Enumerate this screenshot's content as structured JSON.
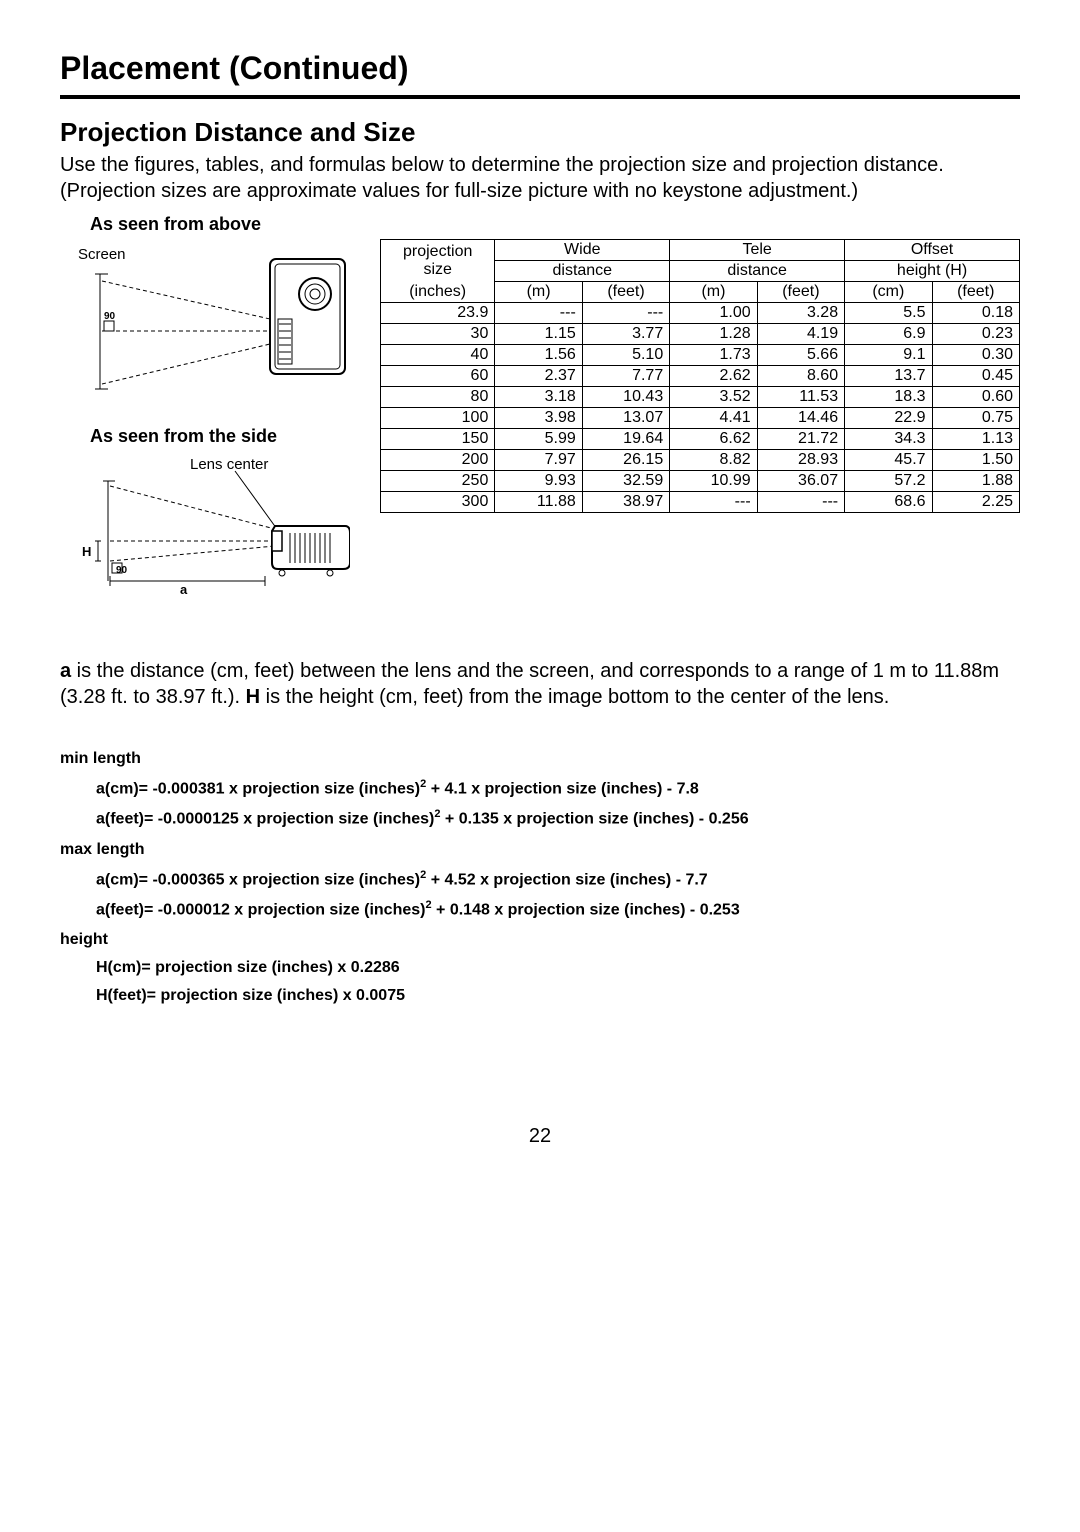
{
  "title": "Placement (Continued)",
  "subtitle": "Projection Distance and Size",
  "intro": "Use the figures, tables, and formulas below to determine the projection size and projection distance. (Projection sizes are approximate values for full-size picture with no keystone adjustment.)",
  "label_above": "As seen from above",
  "label_side": "As seen from the side",
  "diagram": {
    "screen_label": "Screen",
    "angle_label": "90",
    "lens_center_label": "Lens center",
    "H_label": "H",
    "a_label": "a"
  },
  "table": {
    "hdr_proj1": "projection",
    "hdr_proj2": "size",
    "hdr_proj3": "(inches)",
    "hdr_wide": "Wide",
    "hdr_tele": "Tele",
    "hdr_offset": "Offset",
    "hdr_distance": "distance",
    "hdr_height": "height (H)",
    "unit_m": "(m)",
    "unit_feet": "(feet)",
    "unit_cm": "(cm)",
    "rows": [
      [
        "23.9",
        "---",
        "---",
        "1.00",
        "3.28",
        "5.5",
        "0.18"
      ],
      [
        "30",
        "1.15",
        "3.77",
        "1.28",
        "4.19",
        "6.9",
        "0.23"
      ],
      [
        "40",
        "1.56",
        "5.10",
        "1.73",
        "5.66",
        "9.1",
        "0.30"
      ],
      [
        "60",
        "2.37",
        "7.77",
        "2.62",
        "8.60",
        "13.7",
        "0.45"
      ],
      [
        "80",
        "3.18",
        "10.43",
        "3.52",
        "11.53",
        "18.3",
        "0.60"
      ],
      [
        "100",
        "3.98",
        "13.07",
        "4.41",
        "14.46",
        "22.9",
        "0.75"
      ],
      [
        "150",
        "5.99",
        "19.64",
        "6.62",
        "21.72",
        "34.3",
        "1.13"
      ],
      [
        "200",
        "7.97",
        "26.15",
        "8.82",
        "28.93",
        "45.7",
        "1.50"
      ],
      [
        "250",
        "9.93",
        "32.59",
        "10.99",
        "36.07",
        "57.2",
        "1.88"
      ],
      [
        "300",
        "11.88",
        "38.97",
        "---",
        "---",
        "68.6",
        "2.25"
      ]
    ],
    "col_widths_pct": [
      17,
      13,
      13,
      13,
      13,
      13,
      13
    ]
  },
  "para_parts": {
    "a_bold": "a",
    "a_text": " is the distance (cm, feet) between the lens and the screen, and corresponds to a range of 1 m to 11.88m (3.28 ft. to 38.97 ft.). ",
    "h_bold": "H",
    "h_text": " is the height (cm, feet) from the image bottom to the center of the lens."
  },
  "formulas": {
    "min_label": "min length",
    "min1_a": "a(cm)= -0.000381 x projection size (inches)",
    "min1_b": " + 4.1 x projection size (inches) - 7.8",
    "min2_a": "a(feet)= -0.0000125 x projection size (inches)",
    "min2_b": " + 0.135 x projection size (inches) - 0.256",
    "max_label": "max length",
    "max1_a": "a(cm)= -0.000365 x projection size (inches)",
    "max1_b": " + 4.52 x projection size (inches) - 7.7",
    "max2_a": "a(feet)= -0.000012 x projection size (inches)",
    "max2_b": " + 0.148 x projection size (inches) - 0.253",
    "height_label": "height",
    "h1": "H(cm)= projection size (inches) x 0.2286",
    "h2": "H(feet)= projection size (inches) x 0.0075",
    "sup": "2"
  },
  "page_number": "22",
  "colors": {
    "text": "#000000",
    "background": "#ffffff",
    "border": "#000000"
  }
}
